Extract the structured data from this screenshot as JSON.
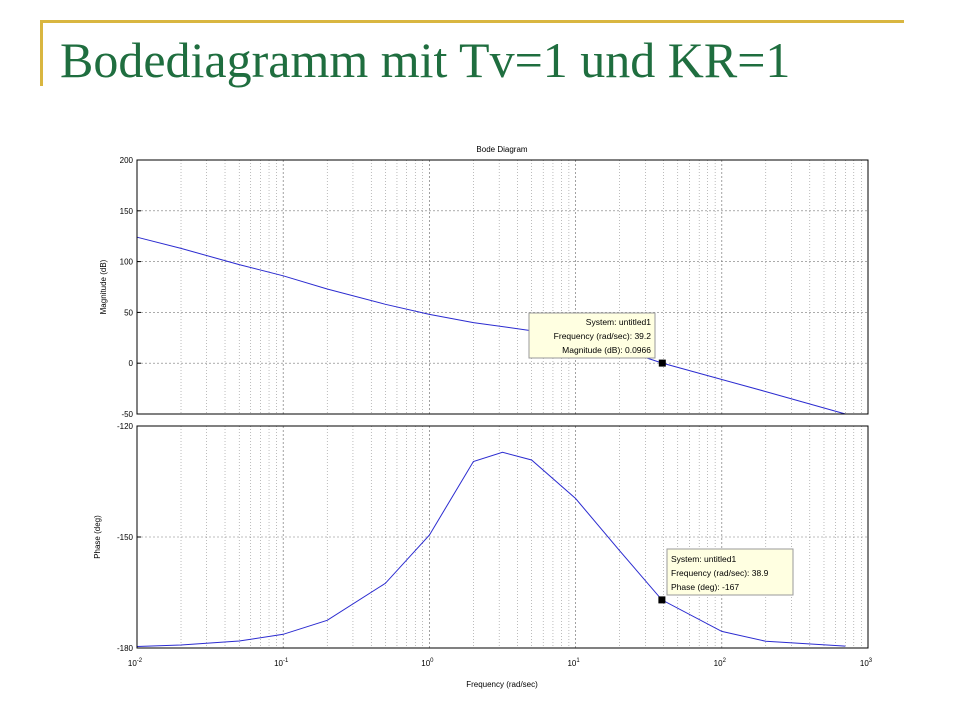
{
  "slide": {
    "title": "Bodediagramm mit Tv=1 und KR=1"
  },
  "chart_data": {
    "type": "line",
    "title": "Bode Diagram",
    "xlabel": "Frequency  (rad/sec)",
    "x_scale": "log",
    "xlim": [
      0.01,
      1000
    ],
    "x_tick_labels": [
      {
        "base": "10",
        "exp": "-2"
      },
      {
        "base": "10",
        "exp": "-1"
      },
      {
        "base": "10",
        "exp": "0"
      },
      {
        "base": "10",
        "exp": "1"
      },
      {
        "base": "10",
        "exp": "2"
      },
      {
        "base": "10",
        "exp": "3"
      }
    ],
    "grid": true,
    "panels": [
      {
        "name": "magnitude",
        "ylabel": "Magnitude (dB)",
        "ylim": [
          -50,
          200
        ],
        "y_ticks": [
          -50,
          0,
          50,
          100,
          150,
          200
        ],
        "series": [
          {
            "x": [
              0.01,
              0.02,
              0.05,
              0.1,
              0.2,
              0.5,
              1,
              2,
              5,
              10,
              20,
              39.2,
              100,
              200,
              700
            ],
            "y": [
              124,
              113,
              97,
              86,
              73,
              58,
              48,
              40,
              32,
              25,
              14,
              0.0966,
              -16,
              -28,
              -50
            ]
          }
        ],
        "datatip": {
          "x": 39.2,
          "y": 0.0966,
          "lines": [
            "System: untitled1",
            "Frequency (rad/sec): 39.2",
            "Magnitude (dB): 0.0966"
          ]
        }
      },
      {
        "name": "phase",
        "ylabel": "Phase (deg)",
        "ylim": [
          -180,
          -120
        ],
        "y_ticks": [
          -180,
          -150,
          -120
        ],
        "series": [
          {
            "x": [
              0.01,
              0.02,
              0.05,
              0.1,
              0.2,
              0.5,
              1,
              2,
              3.16,
              5,
              10,
              20,
              38.9,
              100,
              200,
              700
            ],
            "y": [
              -179.6,
              -179.2,
              -178.1,
              -176.3,
              -172.5,
              -162.5,
              -149.5,
              -129.6,
              -127.1,
              -129.2,
              -139.6,
              -153.7,
              -167,
              -175.5,
              -178.2,
              -179.5
            ]
          }
        ],
        "datatip": {
          "x": 38.9,
          "y": -167,
          "lines": [
            "System: untitled1",
            "Frequency (rad/sec): 38.9",
            "Phase (deg): -167"
          ]
        }
      }
    ],
    "colors": {
      "line": "#2b2bd0",
      "grid": "#7a7a7a",
      "axis": "#000000",
      "datatip_bg": "#ffffe1",
      "marker": "#000000"
    }
  }
}
